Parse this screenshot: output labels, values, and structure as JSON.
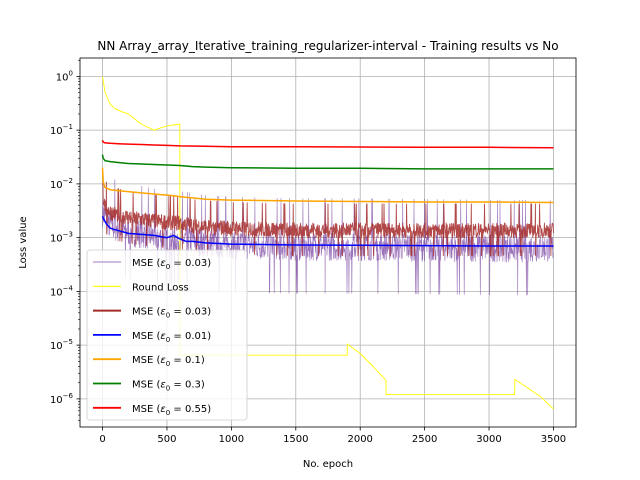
{
  "chart_data": {
    "type": "line",
    "title": "NN Array_array_Iterative_training_regularizer-interval - Training results vs No",
    "xlabel": "No. epoch",
    "ylabel": "Loss value",
    "xlim": [
      -175,
      3675
    ],
    "ylim": [
      3e-07,
      2.2
    ],
    "yscale": "log",
    "grid": true,
    "legend_position": "lower-left",
    "x_ticks": [
      0,
      500,
      1000,
      1500,
      2000,
      2500,
      3000,
      3500
    ],
    "x_tick_labels": [
      "0",
      "500",
      "1000",
      "1500",
      "2000",
      "2500",
      "3000",
      "3500"
    ],
    "y_ticks": [
      1e-06,
      1e-05,
      0.0001,
      0.001,
      0.01,
      0.1,
      1
    ],
    "y_tick_labels": [
      {
        "base": "10",
        "exp": "−6"
      },
      {
        "base": "10",
        "exp": "−5"
      },
      {
        "base": "10",
        "exp": "−4"
      },
      {
        "base": "10",
        "exp": "−3"
      },
      {
        "base": "10",
        "exp": "−2"
      },
      {
        "base": "10",
        "exp": "−1"
      },
      {
        "base": "10",
        "exp": "0"
      }
    ],
    "series": [
      {
        "name": "MSE (ε0 = 0.03)",
        "legend_main": "MSE (",
        "legend_sym": "ε",
        "legend_sub": "0",
        "legend_tail": " = 0.03)",
        "color": "#4b0082",
        "width": 0.6,
        "opacity": 0.55,
        "noisy": true,
        "noise": 0.55,
        "x": [
          0,
          20,
          60,
          120,
          200,
          300,
          450,
          600,
          700,
          800,
          1000,
          1500,
          2000,
          2500,
          3000,
          3500
        ],
        "y": [
          0.003,
          0.0025,
          0.0017,
          0.0015,
          0.0013,
          0.0012,
          0.001,
          0.00095,
          0.0009,
          0.0008,
          0.00075,
          0.0007,
          0.0007,
          0.00068,
          0.00066,
          0.00065
        ]
      },
      {
        "name": "Round Loss",
        "legend_main": "Round Loss",
        "legend_sym": "",
        "legend_sub": "",
        "legend_tail": "",
        "color": "#ffff00",
        "width": 0.9,
        "opacity": 1,
        "noisy": false,
        "x": [
          0,
          20,
          60,
          100,
          150,
          200,
          300,
          400,
          450,
          500,
          600,
          601,
          700,
          1000,
          1500,
          1899,
          1900,
          2000,
          2100,
          2200,
          2201,
          3199,
          3200,
          3300,
          3400,
          3500
        ],
        "y": [
          1.0,
          0.5,
          0.3,
          0.25,
          0.22,
          0.2,
          0.13,
          0.1,
          0.11,
          0.12,
          0.13,
          6.5e-06,
          6.5e-06,
          6.5e-06,
          6.5e-06,
          6.5e-06,
          1.05e-05,
          7e-06,
          4e-06,
          2.2e-06,
          1.2e-06,
          1.2e-06,
          2.3e-06,
          1.6e-06,
          1.1e-06,
          6.5e-07
        ]
      },
      {
        "name": "MSE (ε0 = 0.03)",
        "legend_main": "MSE (",
        "legend_sym": "ε",
        "legend_sub": "0",
        "legend_tail": " = 0.03)",
        "color": "#a52a2a",
        "width": 0.9,
        "opacity": 0.85,
        "noisy": true,
        "noise": 0.3,
        "x": [
          0,
          5,
          20,
          60,
          120,
          200,
          300,
          450,
          600,
          700,
          800,
          1000,
          1500,
          2000,
          2500,
          3000,
          3500
        ],
        "y": [
          0.02,
          0.006,
          0.0038,
          0.003,
          0.0027,
          0.0024,
          0.0022,
          0.002,
          0.0019,
          0.0017,
          0.0016,
          0.0015,
          0.0014,
          0.0014,
          0.0014,
          0.0014,
          0.0014
        ]
      },
      {
        "name": "MSE (ε0 = 0.01)",
        "legend_main": "MSE (",
        "legend_sym": "ε",
        "legend_sub": "0",
        "legend_tail": " = 0.01)",
        "color": "#0000ff",
        "width": 1.5,
        "opacity": 1,
        "noisy": false,
        "x": [
          0,
          10,
          30,
          60,
          100,
          150,
          200,
          300,
          400,
          500,
          550,
          600,
          650,
          700,
          800,
          1000,
          1500,
          2000,
          2500,
          3000,
          3500
        ],
        "y": [
          0.0025,
          0.0022,
          0.0018,
          0.0015,
          0.0014,
          0.0013,
          0.0012,
          0.00115,
          0.0011,
          0.001,
          0.0011,
          0.00095,
          0.00085,
          0.00085,
          0.0008,
          0.00076,
          0.00073,
          0.00072,
          0.00071,
          0.0007,
          0.0007
        ]
      },
      {
        "name": "MSE (ε0 = 0.1)",
        "legend_main": "MSE (",
        "legend_sym": "ε",
        "legend_sub": "0",
        "legend_tail": " = 0.1)",
        "color": "#ffa500",
        "width": 1.5,
        "opacity": 1,
        "noisy": false,
        "x": [
          0,
          5,
          20,
          60,
          120,
          200,
          300,
          400,
          500,
          550,
          600,
          650,
          700,
          800,
          1000,
          1500,
          2000,
          2500,
          3000,
          3500
        ],
        "y": [
          0.02,
          0.011,
          0.0085,
          0.0078,
          0.0075,
          0.0072,
          0.0068,
          0.0065,
          0.0062,
          0.006,
          0.0058,
          0.0056,
          0.0055,
          0.0052,
          0.005,
          0.0048,
          0.0047,
          0.0046,
          0.0046,
          0.0045
        ]
      },
      {
        "name": "MSE (ε0 = 0.3)",
        "legend_main": "MSE (",
        "legend_sym": "ε",
        "legend_sub": "0",
        "legend_tail": " = 0.3)",
        "color": "#008000",
        "width": 1.5,
        "opacity": 1,
        "noisy": false,
        "x": [
          0,
          5,
          20,
          60,
          120,
          200,
          300,
          400,
          500,
          600,
          700,
          800,
          1000,
          1500,
          2000,
          2500,
          3000,
          3500
        ],
        "y": [
          0.035,
          0.03,
          0.027,
          0.026,
          0.025,
          0.024,
          0.0235,
          0.023,
          0.0225,
          0.022,
          0.021,
          0.0205,
          0.02,
          0.0195,
          0.0195,
          0.019,
          0.019,
          0.019
        ]
      },
      {
        "name": "MSE (ε0 = 0.55)",
        "legend_main": "MSE (",
        "legend_sym": "ε",
        "legend_sub": "0",
        "legend_tail": " = 0.55)",
        "color": "#ff0000",
        "width": 1.5,
        "opacity": 1,
        "noisy": false,
        "x": [
          0,
          5,
          20,
          60,
          120,
          200,
          300,
          400,
          500,
          600,
          800,
          1000,
          1500,
          2000,
          2500,
          3000,
          3500
        ],
        "y": [
          0.065,
          0.06,
          0.058,
          0.057,
          0.056,
          0.055,
          0.054,
          0.053,
          0.052,
          0.051,
          0.05,
          0.049,
          0.049,
          0.0485,
          0.048,
          0.048,
          0.047
        ]
      }
    ]
  }
}
